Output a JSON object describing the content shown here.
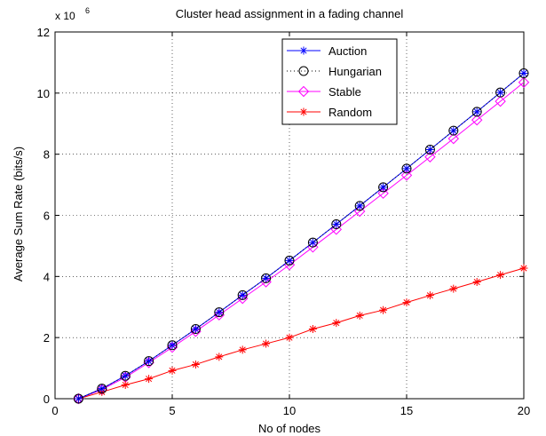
{
  "chart_data": {
    "type": "line",
    "title": "Cluster head assignment in a fading channel",
    "xlabel": "No of nodes",
    "ylabel": "Average Sum Rate (bits/s)",
    "y_exponent_label": "x 10",
    "y_exponent": "6",
    "xlim": [
      0,
      20
    ],
    "ylim": [
      0,
      12
    ],
    "xticks": [
      "0",
      "5",
      "10",
      "15",
      "20"
    ],
    "yticks": [
      "0",
      "2",
      "4",
      "6",
      "8",
      "10",
      "12"
    ],
    "grid": "on",
    "legend_position": "top-right",
    "x": [
      1,
      2,
      3,
      4,
      5,
      6,
      7,
      8,
      9,
      10,
      11,
      12,
      13,
      14,
      15,
      16,
      17,
      18,
      19,
      20
    ],
    "series": [
      {
        "name": "Auction",
        "color": "#0000ff",
        "marker": "asterisk",
        "line": "solid",
        "values": [
          0,
          0.33,
          0.75,
          1.23,
          1.75,
          2.28,
          2.83,
          3.39,
          3.94,
          4.52,
          5.11,
          5.71,
          6.31,
          6.92,
          7.53,
          8.15,
          8.77,
          9.39,
          10.02,
          10.65
        ]
      },
      {
        "name": "Hungarian",
        "color": "#000000",
        "marker": "circle",
        "line": "dotted",
        "values": [
          0,
          0.33,
          0.75,
          1.23,
          1.75,
          2.28,
          2.83,
          3.39,
          3.94,
          4.52,
          5.11,
          5.71,
          6.31,
          6.92,
          7.53,
          8.15,
          8.77,
          9.39,
          10.02,
          10.65
        ]
      },
      {
        "name": "Stable",
        "color": "#ff00ff",
        "marker": "diamond",
        "line": "solid",
        "values": [
          0,
          0.3,
          0.7,
          1.18,
          1.68,
          2.2,
          2.74,
          3.28,
          3.82,
          4.38,
          4.96,
          5.54,
          6.13,
          6.72,
          7.31,
          7.91,
          8.51,
          9.12,
          9.73,
          10.35
        ]
      },
      {
        "name": "Random",
        "color": "#ff0000",
        "marker": "asterisk",
        "line": "solid",
        "values": [
          0,
          0.22,
          0.45,
          0.65,
          0.92,
          1.12,
          1.37,
          1.6,
          1.8,
          2.0,
          2.28,
          2.48,
          2.72,
          2.9,
          3.15,
          3.38,
          3.6,
          3.82,
          4.05,
          4.27
        ]
      }
    ]
  }
}
